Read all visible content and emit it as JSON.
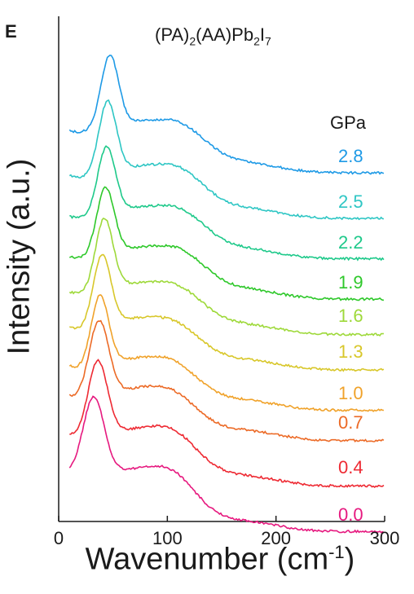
{
  "panel_label": "E",
  "chart_data": {
    "type": "line",
    "title_parts": {
      "p1": "(PA)",
      "s1": "2",
      "p2": "(AA)Pb",
      "s2": "2",
      "p3": "I",
      "s3": "7"
    },
    "xlabel": "Wavenumber (cm",
    "xlabel_sup": "-1",
    "xlabel_close": ")",
    "ylabel": "Intensity (a.u.)",
    "legend_title": "GPa",
    "xlim": [
      0,
      300
    ],
    "xticks": [
      0,
      100,
      200,
      300
    ],
    "xtick_labels": [
      "0",
      "100",
      "200",
      "300"
    ],
    "ylim": [
      0,
      100
    ],
    "yticks_shown": false,
    "series": [
      {
        "name": "0.0",
        "color": "#e6197f",
        "offset": 2,
        "baseline_start": 7,
        "peak": {
          "x": 32,
          "height": 16,
          "width": 10
        },
        "shoulder": {
          "x": 110,
          "height": 3.0
        },
        "tail_drop": 6
      },
      {
        "name": "0.4",
        "color": "#ee2a33",
        "offset": 10,
        "baseline_start": 7,
        "peak": {
          "x": 36,
          "height": 15,
          "width": 9
        },
        "shoulder": {
          "x": 112,
          "height": 3.0
        },
        "tail_drop": 5
      },
      {
        "name": "0.7",
        "color": "#ec6a26",
        "offset": 18,
        "baseline_start": 6,
        "peak": {
          "x": 37,
          "height": 15,
          "width": 9
        },
        "shoulder": {
          "x": 110,
          "height": 2.5
        },
        "tail_drop": 4
      },
      {
        "name": "1.0",
        "color": "#f0a22a",
        "offset": 24,
        "baseline_start": 6,
        "peak": {
          "x": 38,
          "height": 14,
          "width": 8
        },
        "shoulder": {
          "x": 112,
          "height": 2.5
        },
        "tail_drop": 4
      },
      {
        "name": "1.3",
        "color": "#d8c72a",
        "offset": 32,
        "baseline_start": 5,
        "peak": {
          "x": 40,
          "height": 14,
          "width": 8
        },
        "shoulder": {
          "x": 115,
          "height": 2.5
        },
        "tail_drop": 4
      },
      {
        "name": "1.6",
        "color": "#9ed93a",
        "offset": 39,
        "baseline_start": 5,
        "peak": {
          "x": 42,
          "height": 14,
          "width": 8
        },
        "shoulder": {
          "x": 118,
          "height": 3.0
        },
        "tail_drop": 4
      },
      {
        "name": "1.9",
        "color": "#2ec82a",
        "offset": 46,
        "baseline_start": 5,
        "peak": {
          "x": 43,
          "height": 13,
          "width": 8
        },
        "shoulder": {
          "x": 120,
          "height": 3.5
        },
        "tail_drop": 4
      },
      {
        "name": "2.2",
        "color": "#1ec98a",
        "offset": 54,
        "baseline_start": 5,
        "peak": {
          "x": 44,
          "height": 13,
          "width": 8
        },
        "shoulder": {
          "x": 120,
          "height": 3.5
        },
        "tail_drop": 4
      },
      {
        "name": "2.5",
        "color": "#2ec6c4",
        "offset": 62,
        "baseline_start": 5,
        "peak": {
          "x": 45,
          "height": 14,
          "width": 8
        },
        "shoulder": {
          "x": 118,
          "height": 3.5
        },
        "tail_drop": 4
      },
      {
        "name": "2.8",
        "color": "#1e9ae6",
        "offset": 71,
        "baseline_start": 5,
        "peak": {
          "x": 47,
          "height": 14,
          "width": 8
        },
        "shoulder": {
          "x": 120,
          "height": 3.5
        },
        "tail_drop": 4
      }
    ]
  }
}
